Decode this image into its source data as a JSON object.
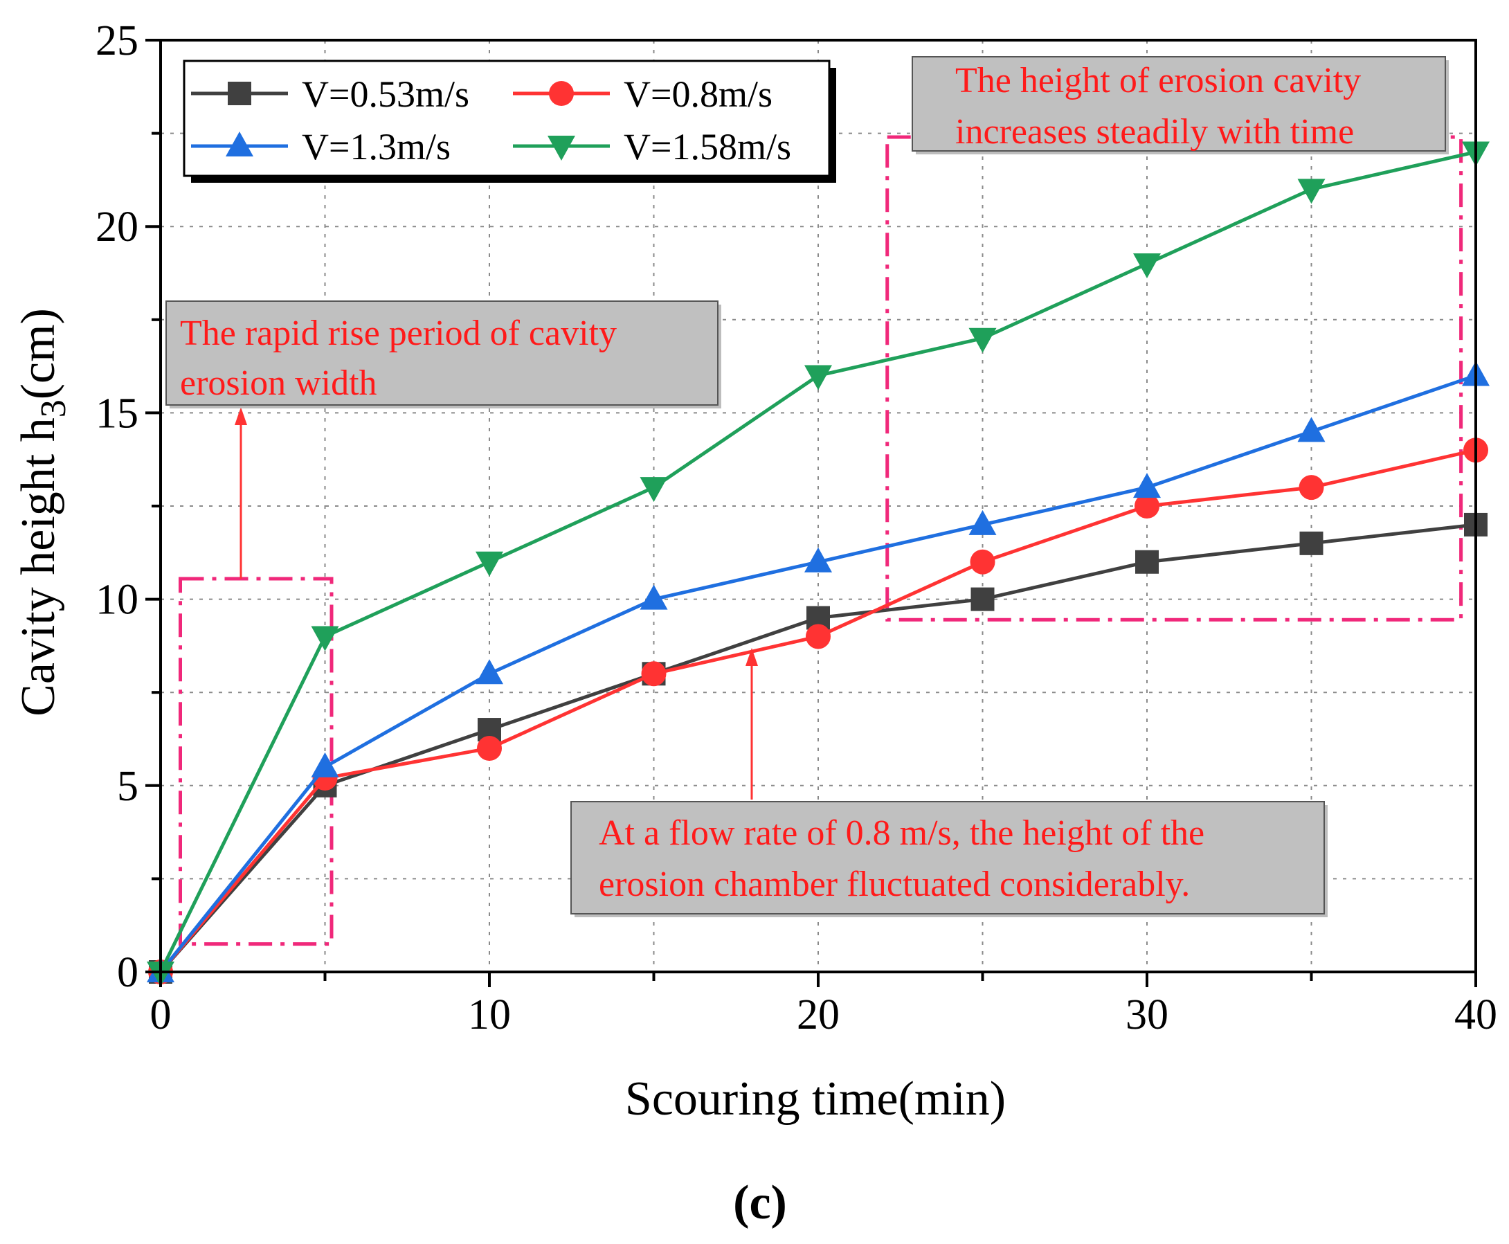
{
  "chart_data": {
    "type": "line",
    "title": "",
    "xlabel": "Scouring time(min)",
    "ylabel": "Cavity height h3(cm)",
    "ylabel_main": "Cavity height h",
    "ylabel_sub": "3",
    "ylabel_unit": "(cm)",
    "xlim": [
      0,
      40
    ],
    "ylim": [
      0,
      25
    ],
    "xticks": [
      0,
      10,
      20,
      30,
      40
    ],
    "yticks": [
      0,
      5,
      10,
      15,
      20,
      25
    ],
    "grid": true,
    "legend_position": "top-left",
    "panel_label": "(c)",
    "x": [
      0,
      5,
      10,
      15,
      20,
      25,
      30,
      35,
      40
    ],
    "series": [
      {
        "name": "V=0.53m/s",
        "color": "#404040",
        "marker": "square",
        "values": [
          0,
          5,
          6.5,
          8,
          9.5,
          10,
          11,
          11.5,
          12
        ]
      },
      {
        "name": "V=0.8m/s",
        "color": "#ff3333",
        "marker": "circle",
        "values": [
          0,
          5.2,
          6,
          8,
          9,
          11,
          12.5,
          13,
          14
        ]
      },
      {
        "name": "V=1.3m/s",
        "color": "#1f6fe0",
        "marker": "triangle-up",
        "values": [
          0,
          5.5,
          8,
          10,
          11,
          12,
          13,
          14.5,
          16
        ]
      },
      {
        "name": "V=1.58m/s",
        "color": "#1fa05a",
        "marker": "triangle-down",
        "values": [
          0,
          9,
          11,
          13,
          16,
          17,
          19,
          21,
          22
        ]
      }
    ],
    "annotations": [
      {
        "id": "rapid-rise",
        "lines": [
          "The rapid rise period of cavity",
          "erosion width"
        ]
      },
      {
        "id": "steady-increase",
        "lines": [
          "The height of erosion cavity",
          "increases steadily with time"
        ]
      },
      {
        "id": "fluctuation",
        "lines": [
          "At a flow rate of 0.8 m/s, the height of the",
          "erosion chamber fluctuated considerably."
        ]
      }
    ]
  }
}
